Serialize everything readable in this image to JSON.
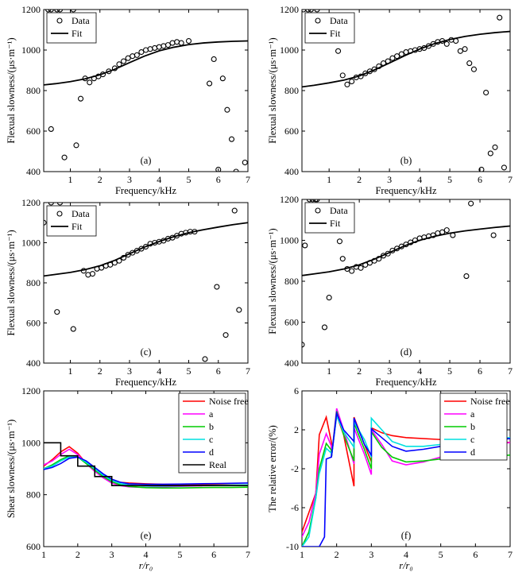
{
  "chart_data": [
    {
      "id": "a",
      "type": "scatter",
      "panel_label": "(a)",
      "xlabel": "Frequency/kHz",
      "ylabel": "Flexual slowness/(μs·m⁻¹)",
      "xlim": [
        0.1,
        7
      ],
      "ylim": [
        400,
        1200
      ],
      "xticks": [
        "1",
        "2",
        "3",
        "4",
        "5",
        "6",
        "7"
      ],
      "yticks": [
        "400",
        "600",
        "800",
        "1000",
        "1200"
      ],
      "legend": [
        "Data",
        "Fit"
      ],
      "data_x": [
        0.25,
        0.35,
        0.55,
        0.65,
        1.1,
        0.35,
        0.8,
        1.2,
        1.35,
        1.5,
        1.65,
        1.8,
        1.95,
        2.1,
        2.3,
        2.5,
        2.65,
        2.8,
        2.95,
        3.1,
        3.25,
        3.4,
        3.55,
        3.7,
        3.85,
        4.0,
        4.15,
        4.3,
        4.45,
        4.6,
        4.75,
        5.0,
        5.7,
        5.85,
        6.0,
        6.15,
        6.3,
        6.45,
        6.6,
        6.9
      ],
      "data_y": [
        1200,
        1200,
        1200,
        1200,
        1200,
        610,
        470,
        530,
        760,
        860,
        840,
        860,
        870,
        880,
        895,
        910,
        930,
        945,
        960,
        970,
        975,
        990,
        1000,
        1005,
        1010,
        1015,
        1020,
        1025,
        1035,
        1040,
        1035,
        1045,
        835,
        955,
        410,
        860,
        705,
        560,
        400,
        445
      ],
      "fit_x": [
        0.1,
        0.5,
        1.0,
        1.5,
        2.0,
        2.5,
        3.0,
        3.5,
        4.0,
        4.5,
        5.0,
        5.5,
        6.0,
        6.5,
        7.0
      ],
      "fit_y": [
        828,
        834,
        844,
        858,
        878,
        905,
        938,
        970,
        996,
        1014,
        1027,
        1035,
        1040,
        1043,
        1045
      ]
    },
    {
      "id": "b",
      "type": "scatter",
      "panel_label": "(b)",
      "xlabel": "Frequency/kHz",
      "ylabel": "Flexual slowness/(μs·m⁻¹)",
      "xlim": [
        0.1,
        7
      ],
      "ylim": [
        400,
        1200
      ],
      "xticks": [
        "1",
        "2",
        "3",
        "4",
        "5",
        "6",
        "7"
      ],
      "yticks": [
        "400",
        "600",
        "800",
        "1000",
        "1200"
      ],
      "legend": [
        "Data",
        "Fit"
      ],
      "data_x": [
        0.15,
        0.3,
        0.4,
        0.6,
        1.3,
        1.45,
        1.6,
        1.75,
        1.9,
        2.05,
        2.2,
        2.35,
        2.5,
        2.65,
        2.8,
        2.95,
        3.1,
        3.25,
        3.4,
        3.55,
        3.7,
        3.85,
        4.0,
        4.15,
        4.3,
        4.45,
        4.6,
        4.75,
        4.9,
        5.05,
        5.2,
        5.35,
        5.5,
        5.65,
        5.8,
        6.05,
        6.2,
        6.35,
        6.5,
        6.65,
        6.8
      ],
      "data_y": [
        1200,
        1200,
        1200,
        1200,
        995,
        875,
        830,
        845,
        865,
        870,
        885,
        895,
        905,
        920,
        935,
        945,
        960,
        970,
        980,
        990,
        995,
        1000,
        1005,
        1010,
        1020,
        1030,
        1040,
        1045,
        1030,
        1050,
        1045,
        995,
        1005,
        935,
        905,
        410,
        790,
        490,
        520,
        1160,
        420
      ],
      "fit_x": [
        0.1,
        0.5,
        1.0,
        1.5,
        2.0,
        2.5,
        3.0,
        3.5,
        4.0,
        4.5,
        5.0,
        5.5,
        6.0,
        6.5,
        7.0
      ],
      "fit_y": [
        818,
        826,
        838,
        852,
        872,
        902,
        936,
        972,
        1005,
        1032,
        1052,
        1067,
        1078,
        1086,
        1092
      ]
    },
    {
      "id": "c",
      "type": "scatter",
      "panel_label": "(c)",
      "xlabel": "Frequency/kHz",
      "ylabel": "Flexual slowness/(μs·m⁻¹)",
      "xlim": [
        0.1,
        7
      ],
      "ylim": [
        400,
        1200
      ],
      "xticks": [
        "1",
        "2",
        "3",
        "4",
        "5",
        "6",
        "7"
      ],
      "yticks": [
        "400",
        "600",
        "800",
        "1000",
        "1200"
      ],
      "legend": [
        "Data",
        "Fit"
      ],
      "data_x": [
        0.1,
        0.35,
        0.65,
        0.55,
        1.1,
        1.45,
        1.6,
        1.75,
        1.9,
        2.05,
        2.2,
        2.35,
        2.5,
        2.65,
        2.8,
        2.95,
        3.1,
        3.25,
        3.4,
        3.55,
        3.7,
        3.85,
        4.0,
        4.15,
        4.3,
        4.45,
        4.6,
        4.75,
        4.9,
        5.05,
        5.2,
        5.55,
        5.95,
        6.25,
        6.55,
        6.7
      ],
      "data_y": [
        1100,
        1200,
        1200,
        655,
        570,
        860,
        840,
        845,
        870,
        875,
        885,
        890,
        900,
        910,
        925,
        940,
        950,
        960,
        970,
        980,
        995,
        1000,
        1005,
        1010,
        1020,
        1025,
        1035,
        1045,
        1050,
        1055,
        1055,
        420,
        780,
        540,
        1160,
        665
      ],
      "fit_x": [
        0.1,
        0.5,
        1.0,
        1.5,
        2.0,
        2.5,
        3.0,
        3.5,
        4.0,
        4.5,
        5.0,
        5.5,
        6.0,
        6.5,
        7.0
      ],
      "fit_y": [
        834,
        842,
        852,
        866,
        885,
        912,
        945,
        978,
        1006,
        1030,
        1050,
        1065,
        1078,
        1090,
        1100
      ]
    },
    {
      "id": "d",
      "type": "scatter",
      "panel_label": "(d)",
      "xlabel": "Frequency/kHz",
      "ylabel": "Flexual slowness/(μs·m⁻¹)",
      "xlim": [
        0.1,
        7
      ],
      "ylim": [
        400,
        1200
      ],
      "xticks": [
        "1",
        "2",
        "3",
        "4",
        "5",
        "6",
        "7"
      ],
      "yticks": [
        "400",
        "600",
        "800",
        "1000",
        "1200"
      ],
      "legend": [
        "Data",
        "Fit"
      ],
      "data_x": [
        0.1,
        0.2,
        0.35,
        0.45,
        0.55,
        0.6,
        0.85,
        1.0,
        1.35,
        1.45,
        1.6,
        1.75,
        1.9,
        2.05,
        2.2,
        2.35,
        2.5,
        2.65,
        2.8,
        2.95,
        3.1,
        3.25,
        3.4,
        3.55,
        3.7,
        3.85,
        4.0,
        4.15,
        4.3,
        4.45,
        4.6,
        4.75,
        4.9,
        5.1,
        5.55,
        5.7,
        6.45
      ],
      "data_y": [
        490,
        975,
        1200,
        1200,
        1200,
        1200,
        575,
        720,
        995,
        910,
        860,
        850,
        870,
        865,
        880,
        890,
        900,
        910,
        925,
        935,
        950,
        960,
        970,
        980,
        990,
        1000,
        1010,
        1015,
        1020,
        1025,
        1035,
        1040,
        1050,
        1025,
        825,
        1180,
        1025
      ],
      "fit_x": [
        0.1,
        0.5,
        1.0,
        1.5,
        2.0,
        2.5,
        3.0,
        3.5,
        4.0,
        4.5,
        5.0,
        5.5,
        6.0,
        6.5,
        7.0
      ],
      "fit_y": [
        828,
        836,
        846,
        860,
        880,
        908,
        940,
        973,
        1000,
        1020,
        1035,
        1046,
        1055,
        1063,
        1070
      ]
    },
    {
      "id": "e",
      "type": "line",
      "panel_label": "(e)",
      "xlabel": "r/r₀",
      "ylabel": "Shear slowness/(μs·m⁻¹)",
      "xlim": [
        1,
        7
      ],
      "ylim": [
        600,
        1200
      ],
      "xticks": [
        "1",
        "2",
        "3",
        "4",
        "5",
        "6",
        "7"
      ],
      "yticks": [
        "600",
        "800",
        "1000",
        "1200"
      ],
      "legend": [
        "Noise free",
        "a",
        "b",
        "c",
        "d",
        "Real"
      ],
      "series": [
        {
          "name": "Noise free",
          "color": "#ff0000",
          "x": [
            1,
            1.25,
            1.5,
            1.75,
            2,
            2.25,
            2.5,
            2.75,
            3,
            3.25,
            3.5,
            4,
            4.5,
            5,
            5.5,
            6,
            6.5,
            7
          ],
          "y": [
            910,
            935,
            965,
            985,
            960,
            920,
            890,
            870,
            855,
            848,
            845,
            842,
            840,
            840,
            839,
            839,
            838,
            838
          ]
        },
        {
          "name": "a",
          "color": "#ff00ff",
          "x": [
            1,
            1.25,
            1.5,
            1.75,
            2,
            2.25,
            2.5,
            2.75,
            3,
            3.25,
            3.5,
            4,
            4.5,
            5,
            5.5,
            6,
            6.5,
            7
          ],
          "y": [
            915,
            930,
            955,
            975,
            955,
            920,
            890,
            865,
            845,
            835,
            830,
            828,
            830,
            832,
            834,
            835,
            836,
            836
          ]
        },
        {
          "name": "b",
          "color": "#00cc00",
          "x": [
            1,
            1.25,
            1.5,
            1.75,
            2,
            2.25,
            2.5,
            2.75,
            3,
            3.25,
            3.5,
            4,
            4.5,
            5,
            5.5,
            6,
            6.5,
            7
          ],
          "y": [
            900,
            915,
            935,
            950,
            945,
            920,
            895,
            870,
            850,
            838,
            832,
            827,
            826,
            826,
            827,
            828,
            828,
            829
          ]
        },
        {
          "name": "c",
          "color": "#00e0e0",
          "x": [
            1,
            1.25,
            1.5,
            1.75,
            2,
            2.25,
            2.5,
            2.75,
            3,
            3.25,
            3.5,
            4,
            4.5,
            5,
            5.5,
            6,
            6.5,
            7
          ],
          "y": [
            900,
            910,
            930,
            945,
            945,
            925,
            900,
            875,
            855,
            843,
            837,
            833,
            833,
            834,
            835,
            836,
            837,
            838
          ]
        },
        {
          "name": "d",
          "color": "#0000ff",
          "x": [
            1,
            1.25,
            1.5,
            1.75,
            2,
            2.25,
            2.5,
            2.75,
            3,
            3.25,
            3.5,
            4,
            4.5,
            5,
            5.5,
            6,
            6.5,
            7
          ],
          "y": [
            897,
            905,
            920,
            940,
            945,
            930,
            905,
            880,
            860,
            848,
            842,
            840,
            840,
            841,
            842,
            843,
            844,
            845
          ]
        },
        {
          "name": "Real",
          "color": "#000000",
          "x": [
            1,
            1.5,
            1.5,
            2,
            2,
            2.5,
            2.5,
            3,
            3,
            7
          ],
          "y": [
            1000,
            1000,
            950,
            950,
            910,
            910,
            870,
            870,
            835,
            835
          ]
        }
      ]
    },
    {
      "id": "f",
      "type": "line",
      "panel_label": "(f)",
      "xlabel": "r/r₀",
      "ylabel": "The relative error/(%)",
      "xlim": [
        1,
        7
      ],
      "ylim": [
        -10,
        6
      ],
      "xticks": [
        "1",
        "2",
        "3",
        "4",
        "5",
        "6",
        "7"
      ],
      "yticks": [
        "-10",
        "-6",
        "-2",
        "2",
        "6"
      ],
      "legend": [
        "Noise free",
        "a",
        "b",
        "c",
        "d"
      ],
      "series": [
        {
          "name": "Noise free",
          "color": "#ff0000",
          "x": [
            1,
            1.2,
            1.4,
            1.5,
            1.7,
            1.85,
            1.85,
            2,
            2.2,
            2.5,
            2.5,
            2.8,
            3,
            3,
            3.3,
            3.6,
            4,
            5,
            6,
            7
          ],
          "y": [
            -8.5,
            -6.5,
            -4.5,
            1.5,
            3.3,
            0.7,
            -0.8,
            3.5,
            1.5,
            -3.8,
            3.3,
            0.5,
            -1.3,
            2.2,
            1.7,
            1.4,
            1.2,
            1,
            0.8,
            0.7
          ]
        },
        {
          "name": "a",
          "color": "#ff00ff",
          "x": [
            1,
            1.2,
            1.4,
            1.5,
            1.7,
            1.85,
            1.85,
            2,
            2.2,
            2.5,
            2.5,
            2.8,
            3,
            3,
            3.3,
            3.6,
            4,
            4.5,
            5,
            6,
            7
          ],
          "y": [
            -9,
            -7.5,
            -4.5,
            -0.5,
            1.6,
            0.3,
            -0.8,
            4.2,
            2,
            -1.5,
            2.2,
            -0.5,
            -2.6,
            2,
            0.5,
            -1.2,
            -1.6,
            -1.3,
            -0.8,
            0.2,
            0.7
          ]
        },
        {
          "name": "b",
          "color": "#00cc00",
          "x": [
            1,
            1.2,
            1.4,
            1.5,
            1.7,
            1.85,
            1.85,
            2,
            2.2,
            2.5,
            2.5,
            2.8,
            3,
            3,
            3.3,
            3.6,
            4,
            4.5,
            5,
            6,
            7
          ],
          "y": [
            -10,
            -8.5,
            -5,
            -2,
            0.6,
            -0.1,
            -0.8,
            3.9,
            1.5,
            -1.2,
            2.7,
            0,
            -2,
            1.8,
            0.2,
            -0.8,
            -1.3,
            -1.2,
            -1,
            -0.8,
            -0.6
          ]
        },
        {
          "name": "c",
          "color": "#00e0e0",
          "x": [
            1,
            1.2,
            1.4,
            1.5,
            1.7,
            1.85,
            1.85,
            2,
            2.2,
            2.5,
            2.5,
            2.8,
            3,
            3,
            3.3,
            3.6,
            4,
            4.5,
            5,
            6,
            7
          ],
          "y": [
            -10,
            -9,
            -5,
            -2.5,
            0.1,
            -0.4,
            -0.8,
            3.4,
            1.8,
            0.2,
            2.8,
            1,
            -0.8,
            3.2,
            2,
            0.8,
            0.3,
            0.3,
            0.5,
            0.9,
            1.2
          ]
        },
        {
          "name": "d",
          "color": "#0000ff",
          "x": [
            1,
            1.2,
            1.4,
            1.5,
            1.65,
            1.7,
            1.85,
            1.85,
            2,
            2.2,
            2.5,
            2.5,
            2.8,
            3,
            3,
            3.3,
            3.6,
            4,
            4.5,
            5,
            6,
            7
          ],
          "y": [
            -10,
            -10,
            -10,
            -10,
            -9,
            -1,
            -0.8,
            -0.8,
            3.7,
            2,
            0.8,
            3.2,
            0.5,
            -0.6,
            2.1,
            1.2,
            0.3,
            -0.2,
            0,
            0.3,
            0.8,
            1.1
          ]
        }
      ]
    }
  ]
}
